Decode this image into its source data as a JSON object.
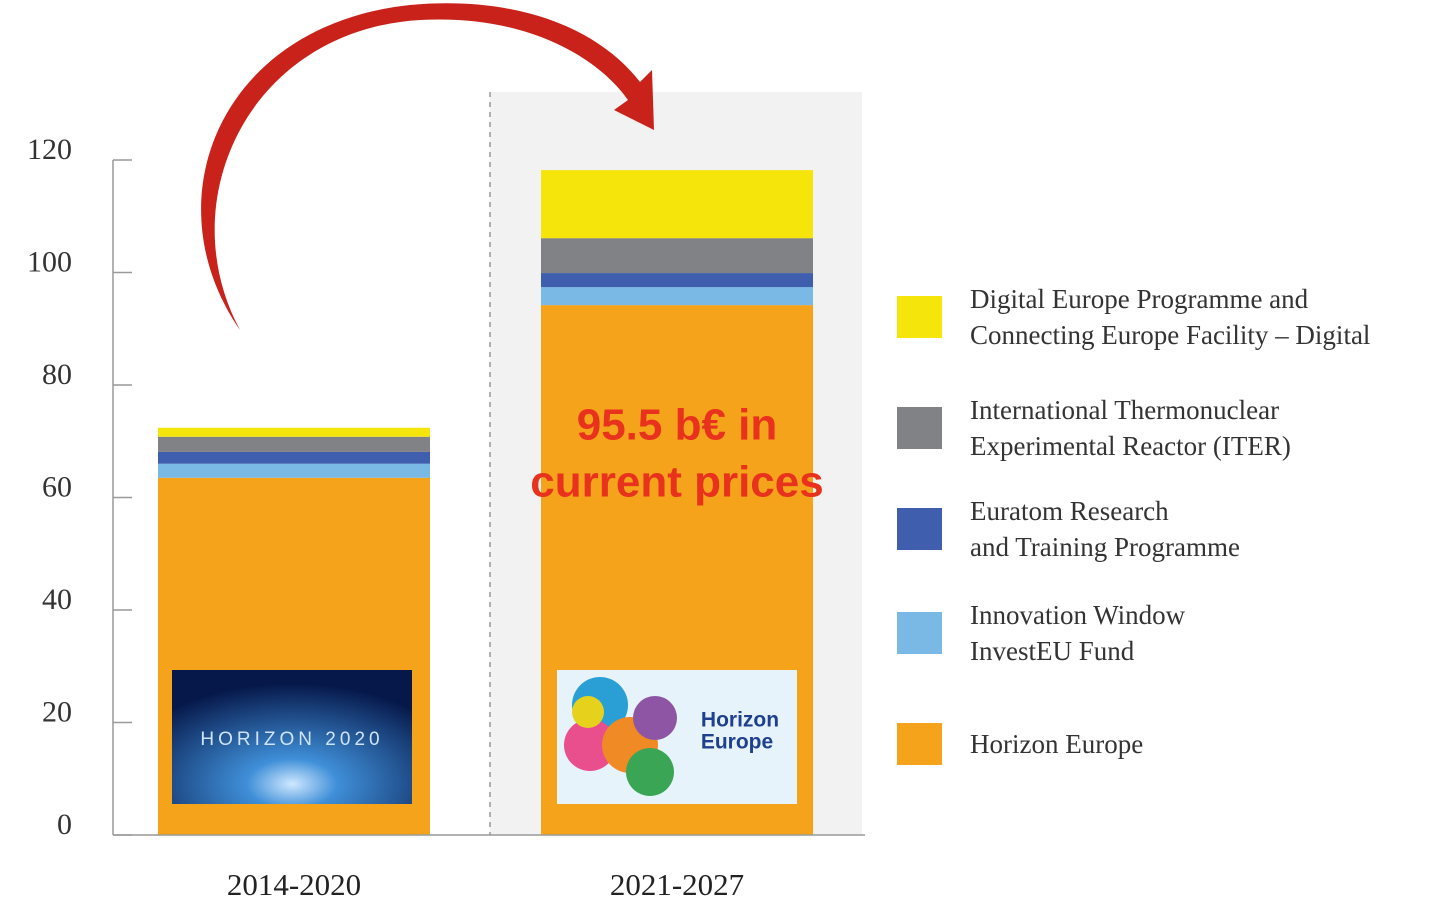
{
  "chart_data": {
    "type": "stacked_bar",
    "categories": [
      "2014-2020",
      "2021-2027"
    ],
    "series": [
      {
        "name": "Horizon Europe",
        "color": "#f5a31a",
        "values": [
          63.5,
          94.2
        ]
      },
      {
        "name": "Innovation Window\nInvestEU Fund",
        "color": "#7ab8e6",
        "values": [
          2.5,
          3.2
        ]
      },
      {
        "name": "Euratom Research\nand Training Programme",
        "color": "#3f5fae",
        "values": [
          2.1,
          2.5
        ]
      },
      {
        "name": "International Thermonuclear\nExperimental Reactor (ITER)",
        "color": "#808285",
        "values": [
          2.7,
          6.2
        ]
      },
      {
        "name": "Digital Europe Programme and\nConnecting Europe Facility – Digital",
        "color": "#f5e50a",
        "values": [
          1.6,
          12.1
        ]
      }
    ],
    "ylim": [
      0,
      120
    ],
    "yticks": [
      0,
      20,
      40,
      60,
      80,
      100,
      120
    ],
    "annotation": [
      "95.5 b€ in",
      "current prices"
    ],
    "logos": [
      "HORIZON 2020",
      "Horizon",
      "Europe"
    ]
  }
}
